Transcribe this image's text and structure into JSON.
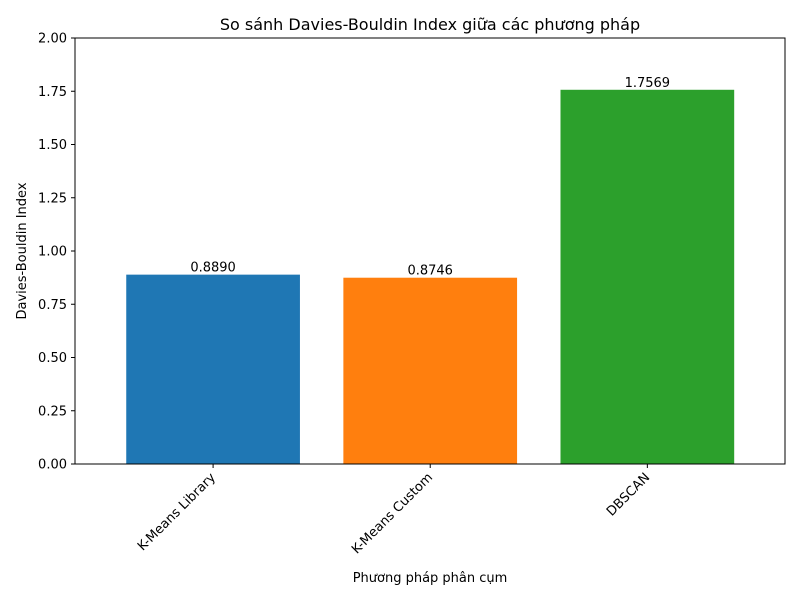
{
  "chart_data": {
    "type": "bar",
    "title": "So sánh Davies-Bouldin Index giữa các phương pháp",
    "xlabel": "Phương pháp phân cụm",
    "ylabel": "Davies-Bouldin Index",
    "categories": [
      "K-Means Library",
      "K-Means Custom",
      "DBSCAN"
    ],
    "values": [
      0.889,
      0.8746,
      1.7569
    ],
    "value_labels": [
      "0.8890",
      "0.8746",
      "1.7569"
    ],
    "colors": [
      "#1f77b4",
      "#ff7f0e",
      "#2ca02c"
    ],
    "ylim": [
      0,
      2
    ],
    "yticks": [
      0,
      0.25,
      0.5,
      0.75,
      1.0,
      1.25,
      1.5,
      1.75,
      2.0
    ],
    "ytick_labels": [
      "0.00",
      "0.25",
      "0.50",
      "0.75",
      "1.00",
      "1.25",
      "1.50",
      "1.75",
      "2.00"
    ],
    "grid": false,
    "legend": "none"
  }
}
